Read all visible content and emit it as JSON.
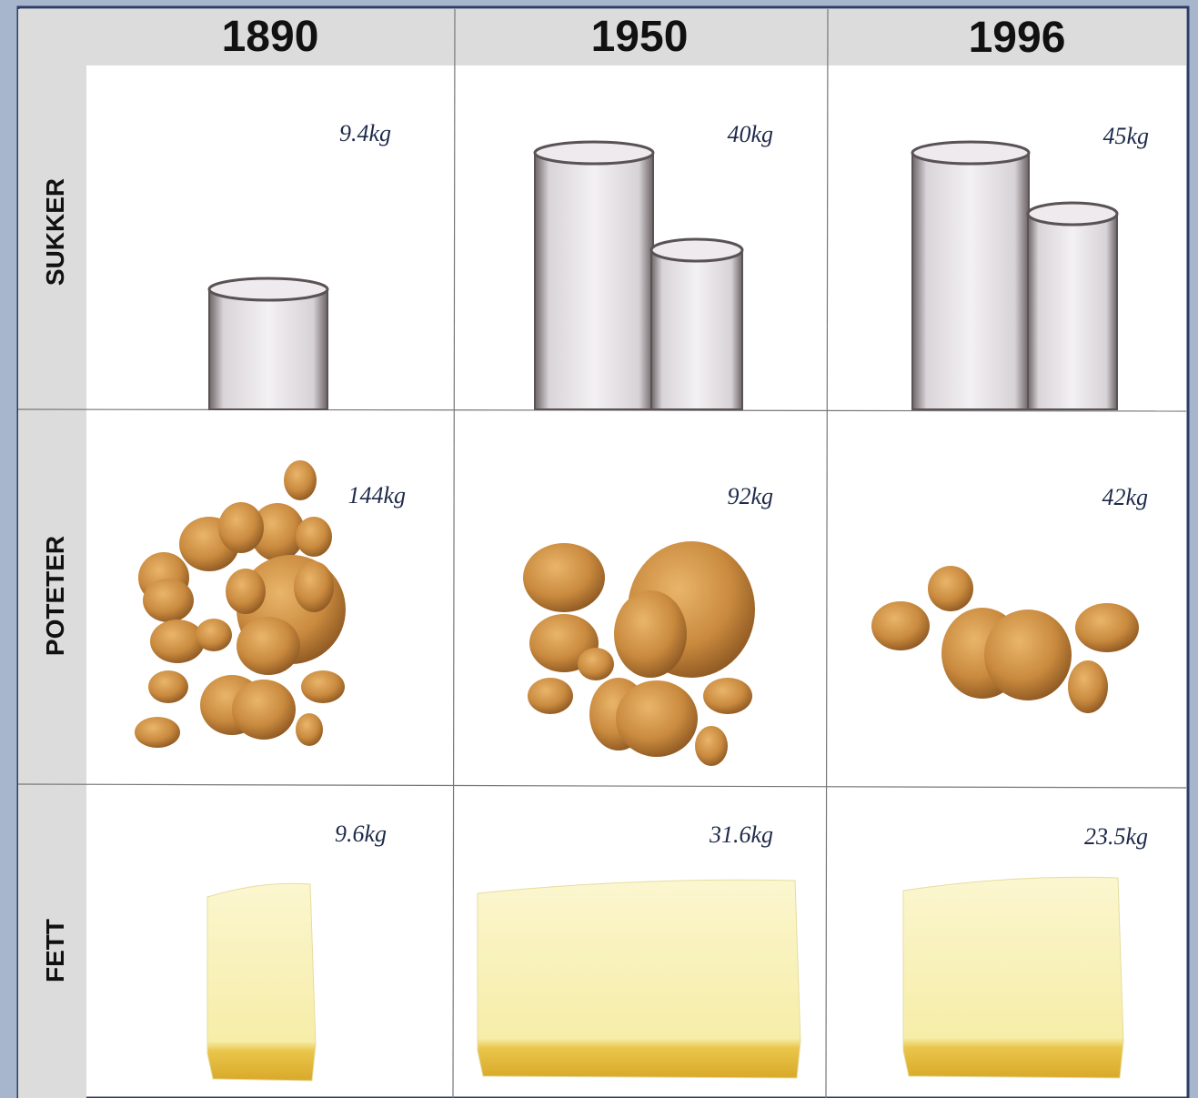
{
  "header": {
    "columns": [
      "1890",
      "1950",
      "1996"
    ]
  },
  "rows": [
    {
      "label": "SUKKER",
      "cells": [
        "9.4kg",
        "40kg",
        "45kg"
      ]
    },
    {
      "label": "POTETER",
      "cells": [
        "144kg",
        "92kg",
        "42kg"
      ]
    },
    {
      "label": "FETT",
      "cells": [
        "9.6kg",
        "31.6kg",
        "23.5kg"
      ]
    }
  ]
}
